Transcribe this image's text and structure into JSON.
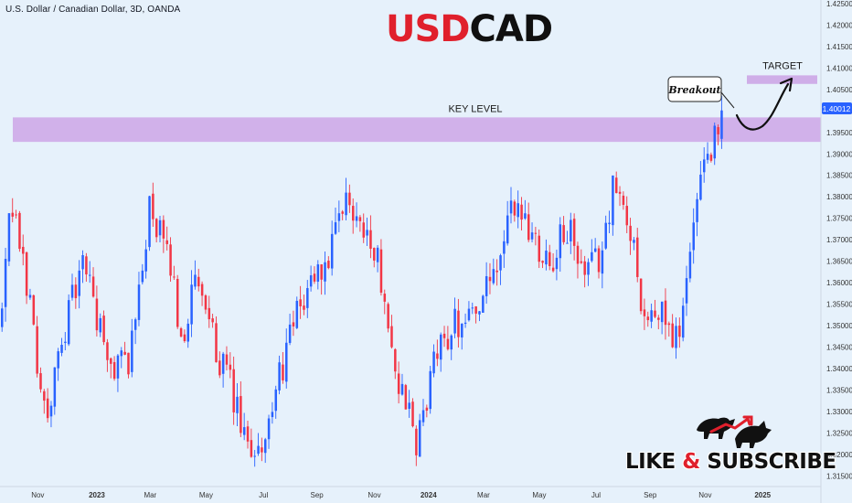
{
  "symbol_info": "U.S. Dollar / Canadian Dollar, 3D, OANDA",
  "title": {
    "part1": "USD",
    "part2": "CAD"
  },
  "cta": {
    "part1": "LIKE ",
    "amp": "&",
    "part2": " SUBSCRIBE"
  },
  "colors": {
    "bull": "#2962ff",
    "bear": "#f23645",
    "zone": "#cca6e6",
    "background": "#e6f1fb"
  },
  "chart_data": {
    "type": "candlestick",
    "ylim": [
      1.3125,
      1.425
    ],
    "y_ticks": [
      "1.42500",
      "1.42000",
      "1.41500",
      "1.41000",
      "1.40500",
      "1.40000",
      "1.39500",
      "1.39000",
      "1.38500",
      "1.38000",
      "1.37500",
      "1.37000",
      "1.36500",
      "1.36000",
      "1.35500",
      "1.35000",
      "1.34500",
      "1.34000",
      "1.33500",
      "1.33000",
      "1.32500",
      "1.32000",
      "1.31500"
    ],
    "x_ticks": [
      {
        "label": "Nov",
        "pos": 0.046
      },
      {
        "label": "2023",
        "pos": 0.118
      },
      {
        "label": "Mar",
        "pos": 0.183
      },
      {
        "label": "May",
        "pos": 0.251
      },
      {
        "label": "Jul",
        "pos": 0.321
      },
      {
        "label": "Sep",
        "pos": 0.386
      },
      {
        "label": "Nov",
        "pos": 0.456
      },
      {
        "label": "2024",
        "pos": 0.522
      },
      {
        "label": "Mar",
        "pos": 0.589
      },
      {
        "label": "May",
        "pos": 0.657
      },
      {
        "label": "Jul",
        "pos": 0.726
      },
      {
        "label": "Sep",
        "pos": 0.792
      },
      {
        "label": "Nov",
        "pos": 0.859
      },
      {
        "label": "2025",
        "pos": 0.929
      }
    ],
    "last_price": "1.40012",
    "key_level": {
      "label": "KEY LEVEL",
      "from": 1.3928,
      "to": 1.3985
    },
    "target": {
      "label": "TARGET",
      "from": 1.4063,
      "to": 1.4083
    },
    "breakout_label": "Breakout",
    "anchors": [
      [
        0.0,
        1.35
      ],
      [
        0.012,
        1.378
      ],
      [
        0.03,
        1.362
      ],
      [
        0.055,
        1.327
      ],
      [
        0.08,
        1.352
      ],
      [
        0.102,
        1.365
      ],
      [
        0.13,
        1.34
      ],
      [
        0.158,
        1.343
      ],
      [
        0.18,
        1.377
      ],
      [
        0.205,
        1.365
      ],
      [
        0.22,
        1.347
      ],
      [
        0.237,
        1.36
      ],
      [
        0.26,
        1.346
      ],
      [
        0.28,
        1.335
      ],
      [
        0.3,
        1.32
      ],
      [
        0.325,
        1.325
      ],
      [
        0.345,
        1.343
      ],
      [
        0.375,
        1.36
      ],
      [
        0.4,
        1.365
      ],
      [
        0.42,
        1.379
      ],
      [
        0.445,
        1.373
      ],
      [
        0.468,
        1.358
      ],
      [
        0.482,
        1.336
      ],
      [
        0.495,
        1.332
      ],
      [
        0.505,
        1.32
      ],
      [
        0.525,
        1.34
      ],
      [
        0.548,
        1.35
      ],
      [
        0.57,
        1.353
      ],
      [
        0.6,
        1.36
      ],
      [
        0.626,
        1.379
      ],
      [
        0.645,
        1.372
      ],
      [
        0.67,
        1.365
      ],
      [
        0.69,
        1.373
      ],
      [
        0.71,
        1.361
      ],
      [
        0.73,
        1.366
      ],
      [
        0.745,
        1.382
      ],
      [
        0.758,
        1.377
      ],
      [
        0.772,
        1.368
      ],
      [
        0.782,
        1.353
      ],
      [
        0.795,
        1.35
      ],
      [
        0.808,
        1.354
      ],
      [
        0.818,
        1.345
      ],
      [
        0.826,
        1.35
      ],
      [
        0.838,
        1.365
      ],
      [
        0.848,
        1.378
      ],
      [
        0.86,
        1.388
      ],
      [
        0.87,
        1.395
      ],
      [
        0.876,
        1.389
      ],
      [
        0.88,
        1.4001
      ]
    ]
  }
}
